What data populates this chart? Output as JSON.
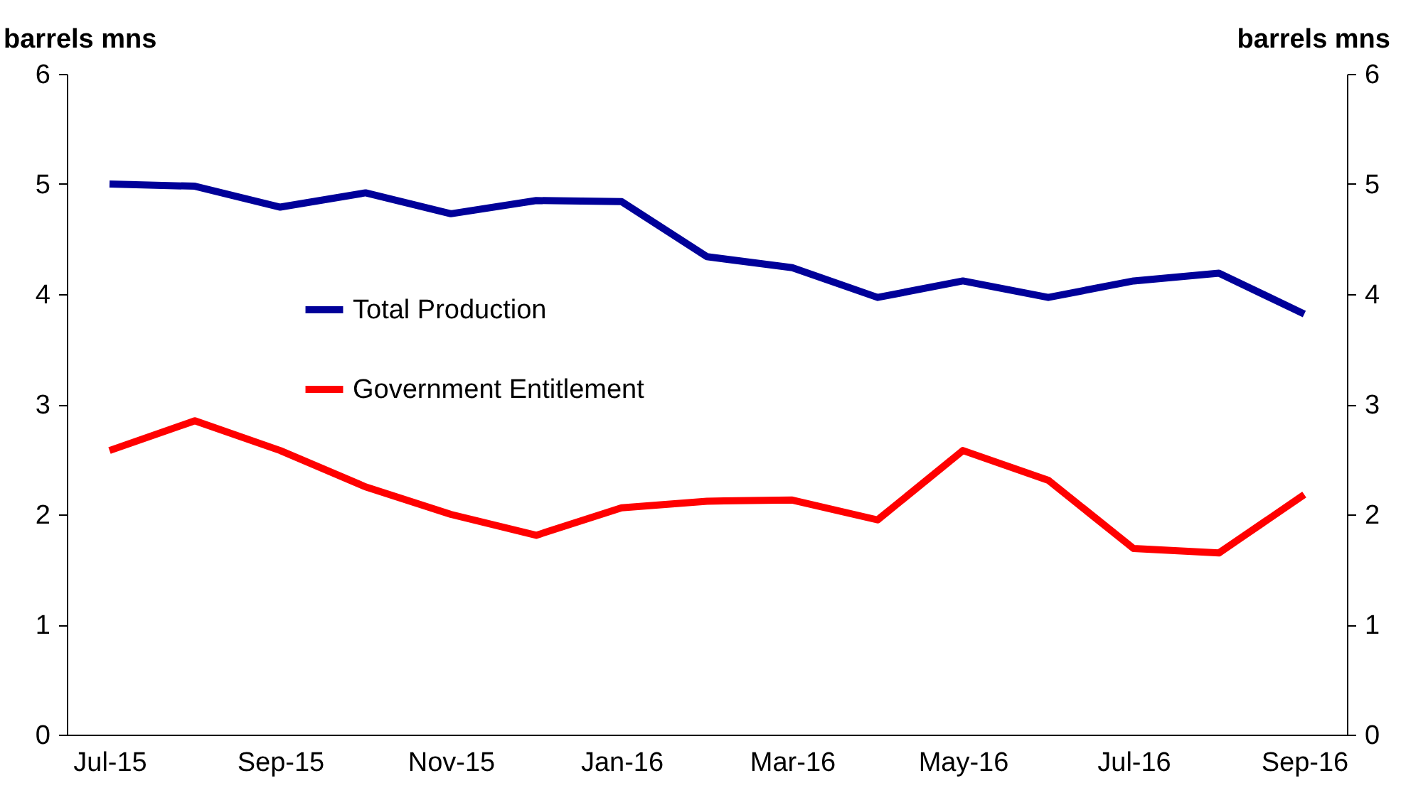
{
  "chart_data": {
    "type": "line",
    "categories": [
      "Jul-15",
      null,
      "Sep-15",
      null,
      "Nov-15",
      null,
      "Jan-16",
      null,
      "Mar-16",
      null,
      "May-16",
      null,
      "Jul-16",
      null,
      "Sep-16"
    ],
    "series": [
      {
        "name": "Total Production",
        "color": "#000099",
        "values": [
          5.0,
          4.98,
          4.79,
          4.92,
          4.73,
          4.85,
          4.84,
          4.34,
          4.24,
          3.97,
          4.12,
          3.97,
          4.12,
          4.19,
          3.82
        ]
      },
      {
        "name": "Government Entitlement",
        "color": "#ff0000",
        "values": [
          2.58,
          2.85,
          2.58,
          2.25,
          2.0,
          1.81,
          2.06,
          2.12,
          2.13,
          1.95,
          2.58,
          2.31,
          1.69,
          1.65,
          2.18
        ]
      }
    ],
    "ylabel": "barrels mns",
    "y2label": "barrels mns",
    "ylim": [
      0,
      6
    ],
    "yticks": [
      0,
      1,
      2,
      3,
      4,
      5,
      6
    ],
    "y2lim": [
      0,
      6
    ],
    "y2ticks": [
      0,
      1,
      2,
      3,
      4,
      5,
      6
    ],
    "grid": false,
    "legend": "center",
    "marker": "none",
    "line_style": "solid"
  }
}
